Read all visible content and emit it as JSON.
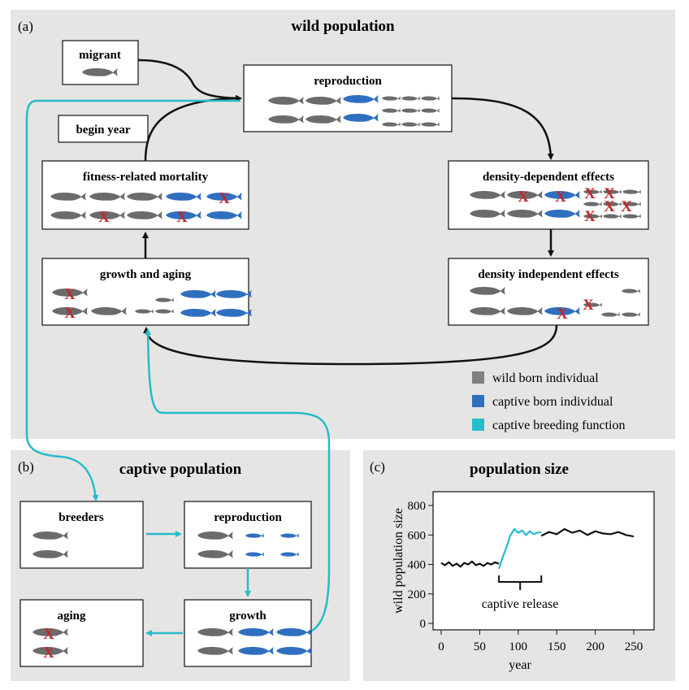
{
  "panels": {
    "a": {
      "label": "(a)",
      "title": "wild population"
    },
    "b": {
      "label": "(b)",
      "title": "captive population"
    },
    "c": {
      "label": "(c)",
      "title": "population size"
    }
  },
  "wild": {
    "migrant": "migrant",
    "reproduction": "reproduction",
    "begin_year": "begin year",
    "fitness_mortality": "fitness-related mortality",
    "density_dependent": "density-dependent effects",
    "growth_aging": "growth and aging",
    "density_independent": "density independent effects"
  },
  "legend": {
    "wild": "wild born individual",
    "captive": "captive born individual",
    "breeding": "captive breeding function",
    "colors": {
      "wild": "#808080",
      "captive": "#2f6fc0",
      "breeding": "#26bccb"
    }
  },
  "captive": {
    "breeders": "breeders",
    "reproduction": "reproduction",
    "aging": "aging",
    "growth": "growth"
  },
  "colors": {
    "wild_fish": "#6b6b6b",
    "captive_fish": "#2f6fc0",
    "breeding": "#26bccb",
    "mortality_x": "#c0282d",
    "panel_bg": "#e6e5e3"
  },
  "chart_data": {
    "type": "line",
    "title": "population size",
    "xlabel": "year",
    "ylabel": "wild population size",
    "xlim": [
      0,
      250
    ],
    "ylim": [
      0,
      800
    ],
    "xticks": [
      "0",
      "50",
      "100",
      "150",
      "200",
      "250"
    ],
    "yticks": [
      "0",
      "200",
      "400",
      "600",
      "800"
    ],
    "annotation": "captive release",
    "release_period": [
      75,
      130
    ],
    "series": [
      {
        "values_segment": "pre-release",
        "x": [
          0,
          5,
          10,
          15,
          20,
          25,
          30,
          35,
          40,
          45,
          50,
          55,
          60,
          65,
          70,
          75
        ],
        "y": [
          410,
          395,
          415,
          390,
          405,
          385,
          410,
          400,
          420,
          395,
          405,
          390,
          410,
          400,
          415,
          405
        ]
      },
      {
        "values_segment": "release",
        "x": [
          75,
          80,
          85,
          90,
          95,
          100,
          105,
          110,
          115,
          120,
          125,
          130
        ],
        "y": [
          370,
          450,
          520,
          600,
          640,
          615,
          630,
          600,
          625,
          605,
          615,
          620
        ]
      },
      {
        "values_segment": "post-release",
        "x": [
          130,
          140,
          150,
          160,
          170,
          180,
          190,
          200,
          210,
          220,
          230,
          240,
          250
        ],
        "y": [
          595,
          620,
          605,
          640,
          615,
          630,
          600,
          625,
          610,
          605,
          620,
          600,
          590
        ]
      }
    ]
  }
}
